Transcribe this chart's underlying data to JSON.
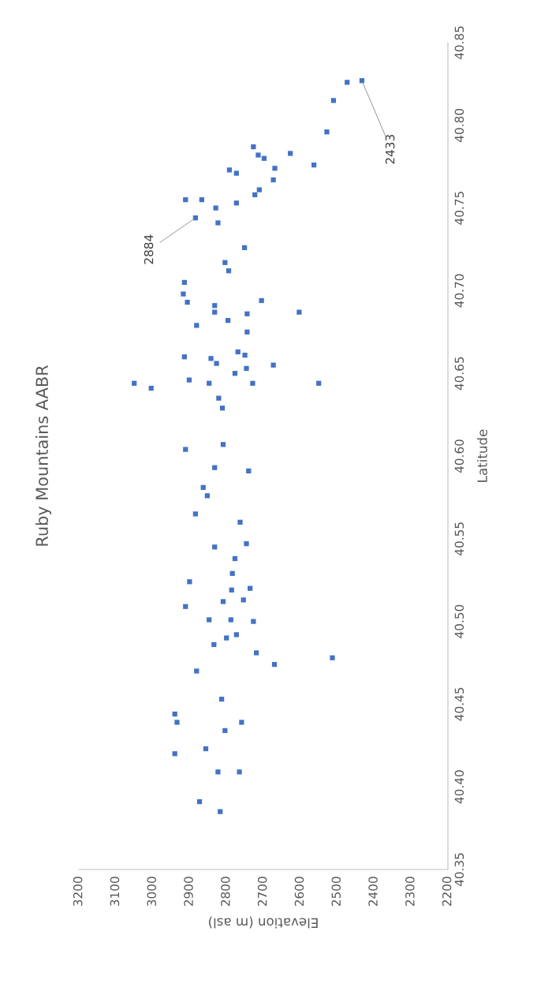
{
  "chart_data": {
    "type": "scatter",
    "title": "Ruby Mountains AABR",
    "xlabel": "Elevation (m asl)",
    "ylabel": "Latitude",
    "x": [
      2473,
      2433,
      2510,
      2528,
      2627,
      2563,
      2727,
      2714,
      2698,
      2669,
      2792,
      2773,
      2673,
      2711,
      2723,
      2911,
      2867,
      2829,
      2773,
      2884,
      2823,
      2751,
      2804,
      2794,
      2914,
      2917,
      2906,
      2705,
      2832,
      2832,
      2603,
      2744,
      2796,
      2881,
      2744,
      2914,
      2842,
      2827,
      2769,
      2750,
      2746,
      2777,
      2673,
      3050,
      3004,
      2901,
      2847,
      2729,
      2550,
      2821,
      2811,
      2911,
      2809,
      2832,
      2740,
      2863,
      2852,
      2884,
      2763,
      2832,
      2746,
      2777,
      2784,
      2900,
      2786,
      2736,
      2809,
      2754,
      2911,
      2847,
      2788,
      2727,
      2773,
      2800,
      2834,
      2719,
      2513,
      2670,
      2881,
      2813,
      2940,
      2934,
      2759,
      2804,
      2856,
      2940,
      2823,
      2765,
      2873,
      2817
    ],
    "values": [
      40.826,
      40.827,
      40.815,
      40.796,
      40.783,
      40.776,
      40.787,
      40.782,
      40.78,
      40.774,
      40.773,
      40.771,
      40.767,
      40.761,
      40.758,
      40.755,
      40.755,
      40.75,
      40.753,
      40.744,
      40.741,
      40.726,
      40.717,
      40.712,
      40.705,
      40.698,
      40.693,
      40.694,
      40.691,
      40.687,
      40.687,
      40.686,
      40.682,
      40.679,
      40.675,
      40.66,
      40.659,
      40.656,
      40.663,
      40.661,
      40.653,
      40.65,
      40.655,
      40.644,
      40.641,
      40.646,
      40.644,
      40.644,
      40.644,
      40.635,
      40.629,
      40.604,
      40.607,
      40.593,
      40.591,
      40.581,
      40.576,
      40.565,
      40.56,
      40.545,
      40.547,
      40.538,
      40.529,
      40.524,
      40.519,
      40.52,
      40.512,
      40.513,
      40.509,
      40.501,
      40.501,
      40.5,
      40.492,
      40.49,
      40.486,
      40.481,
      40.478,
      40.474,
      40.47,
      40.453,
      40.444,
      40.439,
      40.439,
      40.434,
      40.423,
      40.42,
      40.409,
      40.409,
      40.391,
      40.385
    ],
    "color": "#4472c4",
    "marker": "square",
    "xlim": [
      3200,
      2200
    ],
    "xticks": [
      3200,
      3100,
      3000,
      2900,
      2800,
      2700,
      2600,
      2500,
      2400,
      2300,
      2200
    ],
    "ylim": [
      40.35,
      40.85
    ],
    "yticks": [
      {
        "value": 40.35,
        "label": "40.35"
      },
      {
        "value": 40.4,
        "label": "40.40"
      },
      {
        "value": 40.45,
        "label": "40.45"
      },
      {
        "value": 40.5,
        "label": "40.50"
      },
      {
        "value": 40.55,
        "label": "40.55"
      },
      {
        "value": 40.6,
        "label": "40.60"
      },
      {
        "value": 40.65,
        "label": "40.65"
      },
      {
        "value": 40.7,
        "label": "40.70"
      },
      {
        "value": 40.75,
        "label": "40.75"
      },
      {
        "value": 40.8,
        "label": "40.80"
      },
      {
        "value": 40.85,
        "label": "40.85"
      }
    ],
    "grid": false,
    "annotations": [
      {
        "text": "2884",
        "x": 2884,
        "y": 40.744
      },
      {
        "text": "2433",
        "x": 2433,
        "y": 40.827
      }
    ]
  }
}
